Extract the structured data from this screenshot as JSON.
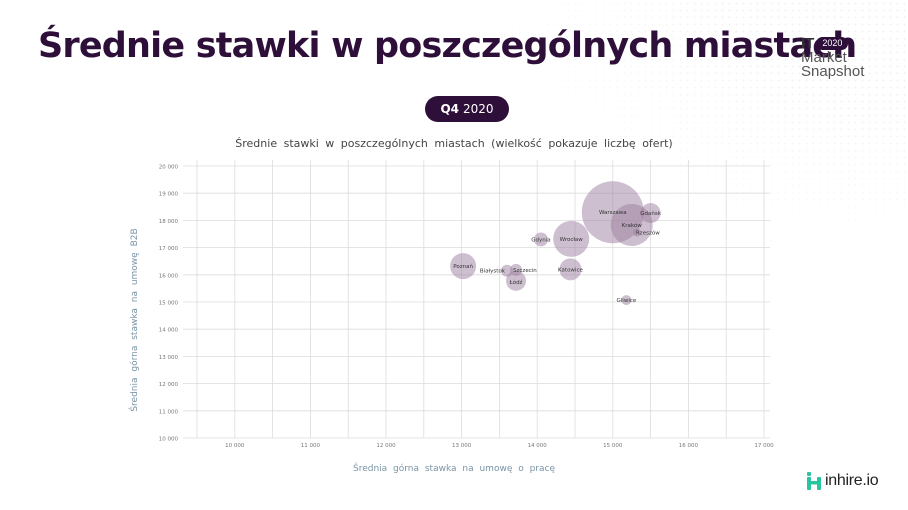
{
  "header": {
    "title": "Średnie stawki w poszczególnych miastach",
    "brand": {
      "it": "IT",
      "year": "2020",
      "line1": "Market",
      "line2": "Snapshot"
    }
  },
  "period": {
    "quarter": "Q4",
    "year": "2020"
  },
  "footer": {
    "logo_text": "inhire.io"
  },
  "colors": {
    "brand_dark": "#2e0f3a",
    "bubble": "#9b7f9f",
    "axis_label": "#7a94a6",
    "logo_green": "#2bc4a0"
  },
  "chart_data": {
    "type": "scatter",
    "subtype": "bubble",
    "title": "Średnie stawki w poszczególnych miastach (wielkość pokazuje liczbę ofert)",
    "xlabel": "Średnia górna stawka na umowę o pracę",
    "ylabel": "Średnia górna stawka na umowę B2B",
    "xlim": [
      9500,
      17000
    ],
    "ylim": [
      10000,
      20000
    ],
    "x_ticks": [
      "10 000",
      "11 000",
      "12 000",
      "13 000",
      "14 000",
      "15 000",
      "16 000",
      "17 000"
    ],
    "x_tick_values": [
      10000,
      11000,
      12000,
      13000,
      14000,
      15000,
      16000,
      17000
    ],
    "y_ticks": [
      "10 000",
      "11 000",
      "12 000",
      "13 000",
      "14 000",
      "15 000",
      "16 000",
      "17 000",
      "18 000",
      "19 000",
      "20 000"
    ],
    "y_tick_values": [
      10000,
      11000,
      12000,
      13000,
      14000,
      15000,
      16000,
      17000,
      18000,
      19000,
      20000
    ],
    "grid": true,
    "legend": null,
    "points": [
      {
        "label": "Warszawa",
        "x": 15000,
        "y": 18300,
        "size": 31
      },
      {
        "label": "Kraków",
        "x": 15250,
        "y": 17830,
        "size": 21
      },
      {
        "label": "Wrocław",
        "x": 14450,
        "y": 17320,
        "size": 18
      },
      {
        "label": "Poznań",
        "x": 13020,
        "y": 16320,
        "size": 13
      },
      {
        "label": "Katowice",
        "x": 14440,
        "y": 16200,
        "size": 11
      },
      {
        "label": "Gdańsk",
        "x": 15500,
        "y": 18270,
        "size": 10
      },
      {
        "label": "Łódź",
        "x": 13720,
        "y": 15780,
        "size": 10
      },
      {
        "label": "Gdynia",
        "x": 14050,
        "y": 17300,
        "size": 7
      },
      {
        "label": "Białystok",
        "x": 13600,
        "y": 16150,
        "size": 6
      },
      {
        "label": "Szczecin",
        "x": 13720,
        "y": 16180,
        "size": 6
      },
      {
        "label": "Gliwice",
        "x": 15180,
        "y": 15070,
        "size": 5
      },
      {
        "label": "Rzeszów",
        "x": 15320,
        "y": 17550,
        "size": 4
      }
    ]
  }
}
